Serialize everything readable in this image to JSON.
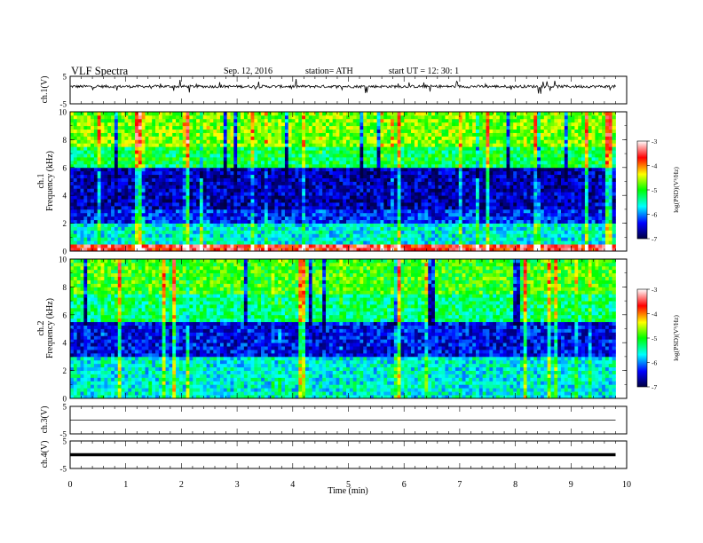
{
  "header": {
    "title": "VLF  Spectra",
    "date": "Sep. 12, 2016",
    "station": "station= ATH",
    "start": "start  UT  =    12: 30: 1"
  },
  "colors": {
    "spectrogram_scale": [
      "#000040",
      "#0000ff",
      "#00ffff",
      "#00ff00",
      "#ffff00",
      "#ff0000",
      "#ffffff"
    ],
    "trace": "#000000"
  },
  "chart_data": [
    {
      "type": "line",
      "panel": "ch1-waveform",
      "ylabel": "ch.1(V)",
      "ylim": [
        -5,
        5
      ],
      "y_ticks": [
        "5",
        "-5"
      ],
      "xlim": [
        0,
        10
      ],
      "baseline_v": 1.3,
      "noise_amplitude_v": 0.5
    },
    {
      "type": "heatmap",
      "panel": "ch1-spectrogram",
      "ylabel_line1": "ch.1",
      "ylabel_line2": "Frequency  (kHz)",
      "ylim": [
        0,
        10
      ],
      "y_ticks": [
        "0",
        "2",
        "4",
        "6",
        "8",
        "10"
      ],
      "xlim": [
        0,
        10
      ],
      "data_end_min": 9.8,
      "bands_khz": [
        {
          "from": 0,
          "to": 0.3,
          "logpsd": -3.6
        },
        {
          "from": 0.3,
          "to": 1.8,
          "logpsd": -5.6
        },
        {
          "from": 1.8,
          "to": 3.0,
          "logpsd": -6.3
        },
        {
          "from": 3.0,
          "to": 5.8,
          "logpsd": -6.6
        },
        {
          "from": 5.8,
          "to": 7.5,
          "logpsd": -5.2
        },
        {
          "from": 7.5,
          "to": 10,
          "logpsd": -4.7
        }
      ],
      "colorbar": {
        "label": "log(PSD)(V²/Hz)",
        "range": [
          -7,
          -3
        ],
        "ticks": [
          "-3",
          "-4",
          "-5",
          "-6",
          "-7"
        ]
      }
    },
    {
      "type": "heatmap",
      "panel": "ch2-spectrogram",
      "ylabel_line1": "ch.2",
      "ylabel_line2": "Frequency  (kHz)",
      "ylim": [
        0,
        10
      ],
      "y_ticks": [
        "0",
        "2",
        "4",
        "6",
        "8",
        "10"
      ],
      "xlim": [
        0,
        10
      ],
      "data_end_min": 9.8,
      "bands_khz": [
        {
          "from": 0,
          "to": 1.2,
          "logpsd": -5.6
        },
        {
          "from": 1.2,
          "to": 3.0,
          "logpsd": -5.6
        },
        {
          "from": 3.0,
          "to": 5.5,
          "logpsd": -6.4
        },
        {
          "from": 5.5,
          "to": 7.5,
          "logpsd": -5.3
        },
        {
          "from": 7.5,
          "to": 10,
          "logpsd": -4.9
        }
      ],
      "colorbar": {
        "label": "log(PSD)(V²/Hz)",
        "range": [
          -7,
          -3
        ],
        "ticks": [
          "-3",
          "-4",
          "-5",
          "-6",
          "-7"
        ]
      }
    },
    {
      "type": "line",
      "panel": "ch3-waveform",
      "ylabel": "ch.3(V)",
      "ylim": [
        -5,
        5
      ],
      "y_ticks": [
        "5",
        "-5"
      ],
      "xlim": [
        0,
        10
      ],
      "baseline_v": 0
    },
    {
      "type": "line",
      "panel": "ch4-waveform",
      "ylabel": "ch.4(V)",
      "ylim": [
        -5,
        5
      ],
      "y_ticks": [
        "5",
        "-5"
      ],
      "xlim": [
        0,
        10
      ],
      "baseline_v": 0,
      "xlabel": "Time  (min)",
      "x_ticks": [
        "0",
        "1",
        "2",
        "3",
        "4",
        "5",
        "6",
        "7",
        "8",
        "9",
        "10"
      ]
    }
  ]
}
